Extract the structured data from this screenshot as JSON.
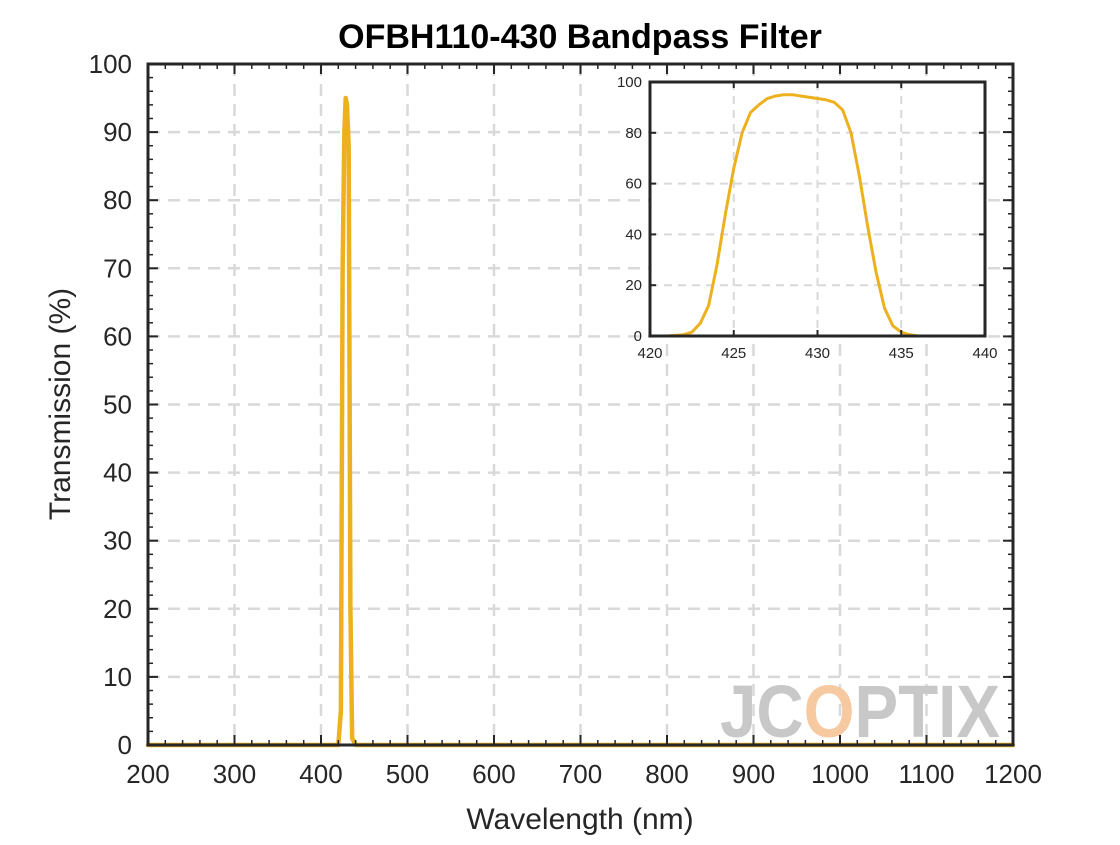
{
  "chart_data": [
    {
      "type": "line",
      "title": "OFBH110-430 Bandpass Filter",
      "xlabel": "Wavelength (nm)",
      "ylabel": "Transmission (%)",
      "xlim": [
        200,
        1200
      ],
      "ylim": [
        0,
        100
      ],
      "xticks": [
        200,
        300,
        400,
        500,
        600,
        700,
        800,
        900,
        1000,
        1100,
        1200
      ],
      "yticks": [
        0,
        10,
        20,
        30,
        40,
        50,
        60,
        70,
        80,
        90,
        100
      ],
      "grid": true,
      "series": [
        {
          "color": "#EDB120",
          "x": [
            200,
            420,
            423,
            425,
            427,
            428.5,
            430,
            432,
            434,
            436,
            440,
            1200
          ],
          "y": [
            0,
            0,
            5,
            70,
            90,
            95,
            94,
            88,
            20,
            1,
            0,
            0
          ]
        }
      ]
    },
    {
      "type": "line",
      "title": "",
      "xlabel": "",
      "ylabel": "",
      "xlim": [
        420,
        440
      ],
      "ylim": [
        0,
        100
      ],
      "xticks": [
        420,
        425,
        430,
        435,
        440
      ],
      "yticks": [
        0,
        20,
        40,
        60,
        80,
        100
      ],
      "grid": true,
      "series": [
        {
          "color": "#EDB120",
          "x": [
            420,
            421,
            422,
            422.5,
            423,
            423.5,
            424,
            424.5,
            425,
            425.5,
            426,
            426.5,
            427,
            427.5,
            428,
            428.5,
            429,
            429.5,
            430,
            430.5,
            431,
            431.5,
            432,
            432.5,
            433,
            433.5,
            434,
            434.5,
            435,
            435.5,
            436,
            437,
            438,
            440
          ],
          "y": [
            0,
            0,
            0.5,
            1.5,
            5,
            12,
            28,
            48,
            66,
            80,
            88,
            91,
            93.5,
            94.5,
            95,
            95,
            94.5,
            94,
            93.5,
            93,
            92,
            89,
            80,
            63,
            43,
            25,
            11,
            4,
            1.5,
            0.5,
            0,
            0,
            0,
            0
          ]
        }
      ]
    }
  ],
  "watermark": {
    "text": "JCOPTIX",
    "color": "#c8c8c8",
    "accent": "#f7c9a0"
  }
}
